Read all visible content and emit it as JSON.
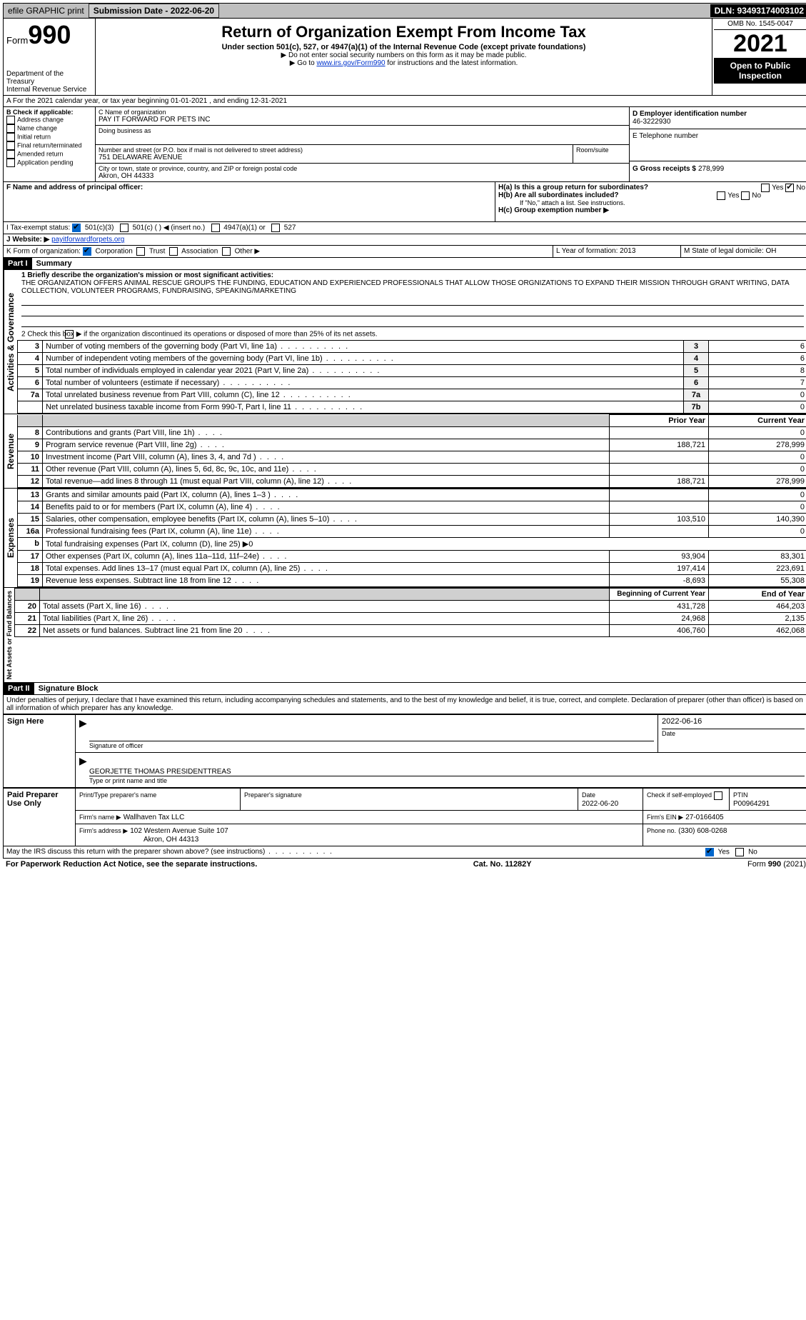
{
  "topbar": {
    "efile": "efile GRAPHIC print",
    "submission_label": "Submission Date - 2022-06-20",
    "dln_label": "DLN: 93493174003102"
  },
  "header": {
    "form_word": "Form",
    "form_num": "990",
    "title": "Return of Organization Exempt From Income Tax",
    "subtitle": "Under section 501(c), 527, or 4947(a)(1) of the Internal Revenue Code (except private foundations)",
    "note1": "▶ Do not enter social security numbers on this form as it may be made public.",
    "note2_pre": "▶ Go to ",
    "note2_link": "www.irs.gov/Form990",
    "note2_post": " for instructions and the latest information.",
    "dept": "Department of the Treasury",
    "irs": "Internal Revenue Service",
    "omb": "OMB No. 1545-0047",
    "year": "2021",
    "otp1": "Open to Public",
    "otp2": "Inspection"
  },
  "a_line": "A For the 2021 calendar year, or tax year beginning 01-01-2021    , and ending 12-31-2021",
  "b": {
    "label": "B Check if applicable:",
    "opts": [
      "Address change",
      "Name change",
      "Initial return",
      "Final return/terminated",
      "Amended return",
      "Application pending"
    ]
  },
  "c": {
    "name_lbl": "C Name of organization",
    "name_val": "PAY IT FORWARD FOR PETS INC",
    "dba_lbl": "Doing business as",
    "street_lbl": "Number and street (or P.O. box if mail is not delivered to street address)",
    "room_lbl": "Room/suite",
    "street_val": "751 DELAWARE AVENUE",
    "city_lbl": "City or town, state or province, country, and ZIP or foreign postal code",
    "city_val": "Akron, OH  44333"
  },
  "d": {
    "lbl": "D Employer identification number",
    "val": "46-3222930"
  },
  "e": {
    "lbl": "E Telephone number"
  },
  "f": {
    "lbl": "F  Name and address of principal officer:"
  },
  "g": {
    "lbl": "G Gross receipts $",
    "val": "278,999"
  },
  "h": {
    "a_lbl": "H(a)  Is this a group return for subordinates?",
    "b_lbl": "H(b)  Are all subordinates included?",
    "b_note": "If \"No,\" attach a list. See instructions.",
    "c_lbl": "H(c)  Group exemption number ▶",
    "yes": "Yes",
    "no": "No"
  },
  "i": {
    "lbl": "I   Tax-exempt status:",
    "o1": "501(c)(3)",
    "o2": "501(c) (  ) ◀ (insert no.)",
    "o3": "4947(a)(1) or",
    "o4": "527"
  },
  "j": {
    "lbl": "J   Website: ▶",
    "val": "payitforwardforpets.org"
  },
  "k": {
    "lbl": "K Form of organization:",
    "o1": "Corporation",
    "o2": "Trust",
    "o3": "Association",
    "o4": "Other ▶"
  },
  "l": {
    "lbl": "L Year of formation: 2013"
  },
  "m": {
    "lbl": "M State of legal domicile: OH"
  },
  "part1": {
    "hdr": "Part I",
    "title": "Summary",
    "q1": "1 Briefly describe the organization's mission or most significant activities:",
    "mission": "THE ORGANIZATION OFFERS ANIMAL RESCUE GROUPS THE FUNDING, EDUCATION AND EXPERIENCED PROFESSIONALS THAT ALLOW THOSE ORGNIZATIONS TO EXPAND THEIR MISSION THROUGH GRANT WRITING, DATA COLLECTION, VOLUNTEER PROGRAMS, FUNDRAISING, SPEAKING/MARKETING",
    "q2": "2   Check this box ▶         if the organization discontinued its operations or disposed of more than 25% of its net assets.",
    "lines_ag": [
      {
        "n": "3",
        "t": "Number of voting members of the governing body (Part VI, line 1a)",
        "b": "3",
        "v": "6"
      },
      {
        "n": "4",
        "t": "Number of independent voting members of the governing body (Part VI, line 1b)",
        "b": "4",
        "v": "6"
      },
      {
        "n": "5",
        "t": "Total number of individuals employed in calendar year 2021 (Part V, line 2a)",
        "b": "5",
        "v": "8"
      },
      {
        "n": "6",
        "t": "Total number of volunteers (estimate if necessary)",
        "b": "6",
        "v": "7"
      },
      {
        "n": "7a",
        "t": "Total unrelated business revenue from Part VIII, column (C), line 12",
        "b": "7a",
        "v": "0"
      },
      {
        "n": "",
        "t": "Net unrelated business taxable income from Form 990-T, Part I, line 11",
        "b": "7b",
        "v": "0"
      }
    ],
    "col_prior": "Prior Year",
    "col_curr": "Current Year",
    "revenue": [
      {
        "n": "8",
        "t": "Contributions and grants (Part VIII, line 1h)",
        "p": "",
        "c": "0"
      },
      {
        "n": "9",
        "t": "Program service revenue (Part VIII, line 2g)",
        "p": "188,721",
        "c": "278,999"
      },
      {
        "n": "10",
        "t": "Investment income (Part VIII, column (A), lines 3, 4, and 7d )",
        "p": "",
        "c": "0"
      },
      {
        "n": "11",
        "t": "Other revenue (Part VIII, column (A), lines 5, 6d, 8c, 9c, 10c, and 11e)",
        "p": "",
        "c": "0"
      },
      {
        "n": "12",
        "t": "Total revenue—add lines 8 through 11 (must equal Part VIII, column (A), line 12)",
        "p": "188,721",
        "c": "278,999"
      }
    ],
    "expenses": [
      {
        "n": "13",
        "t": "Grants and similar amounts paid (Part IX, column (A), lines 1–3 )",
        "p": "",
        "c": "0"
      },
      {
        "n": "14",
        "t": "Benefits paid to or for members (Part IX, column (A), line 4)",
        "p": "",
        "c": "0"
      },
      {
        "n": "15",
        "t": "Salaries, other compensation, employee benefits (Part IX, column (A), lines 5–10)",
        "p": "103,510",
        "c": "140,390"
      },
      {
        "n": "16a",
        "t": "Professional fundraising fees (Part IX, column (A), line 11e)",
        "p": "",
        "c": "0"
      },
      {
        "n": "b",
        "t": "Total fundraising expenses (Part IX, column (D), line 25) ▶0",
        "p": null,
        "c": null
      },
      {
        "n": "17",
        "t": "Other expenses (Part IX, column (A), lines 11a–11d, 11f–24e)",
        "p": "93,904",
        "c": "83,301"
      },
      {
        "n": "18",
        "t": "Total expenses. Add lines 13–17 (must equal Part IX, column (A), line 25)",
        "p": "197,414",
        "c": "223,691"
      },
      {
        "n": "19",
        "t": "Revenue less expenses. Subtract line 18 from line 12",
        "p": "-8,693",
        "c": "55,308"
      }
    ],
    "col_boy": "Beginning of Current Year",
    "col_eoy": "End of Year",
    "netassets": [
      {
        "n": "20",
        "t": "Total assets (Part X, line 16)",
        "p": "431,728",
        "c": "464,203"
      },
      {
        "n": "21",
        "t": "Total liabilities (Part X, line 26)",
        "p": "24,968",
        "c": "2,135"
      },
      {
        "n": "22",
        "t": "Net assets or fund balances. Subtract line 21 from line 20",
        "p": "406,760",
        "c": "462,068"
      }
    ],
    "vlabels": {
      "ag": "Activities & Governance",
      "rev": "Revenue",
      "exp": "Expenses",
      "na": "Net Assets or Fund Balances"
    }
  },
  "part2": {
    "hdr": "Part II",
    "title": "Signature Block",
    "decl": "Under penalties of perjury, I declare that I have examined this return, including accompanying schedules and statements, and to the best of my knowledge and belief, it is true, correct, and complete. Declaration of preparer (other than officer) is based on all information of which preparer has any knowledge.",
    "sign_here": "Sign Here",
    "sig_officer": "Signature of officer",
    "date": "Date",
    "sig_date": "2022-06-16",
    "officer_name": "GEORJETTE THOMAS PRESIDENTTREAS",
    "type_name": "Type or print name and title",
    "paid": "Paid Preparer Use Only",
    "pt_name_lbl": "Print/Type preparer's name",
    "pt_sig_lbl": "Preparer's signature",
    "pt_date_lbl": "Date",
    "pt_date": "2022-06-20",
    "pt_check": "Check         if self-employed",
    "ptin_lbl": "PTIN",
    "ptin": "P00964291",
    "firm_name_lbl": "Firm's name    ▶",
    "firm_name": "Wallhaven Tax LLC",
    "firm_ein_lbl": "Firm's EIN ▶",
    "firm_ein": "27-0166405",
    "firm_addr_lbl": "Firm's address ▶",
    "firm_addr1": "102 Western Avenue Suite 107",
    "firm_addr2": "Akron, OH  44313",
    "phone_lbl": "Phone no.",
    "phone": "(330) 608-0268",
    "discuss": "May the IRS discuss this return with the preparer shown above? (see instructions)"
  },
  "footer": {
    "left": "For Paperwork Reduction Act Notice, see the separate instructions.",
    "mid": "Cat. No. 11282Y",
    "right": "Form 990 (2021)"
  }
}
